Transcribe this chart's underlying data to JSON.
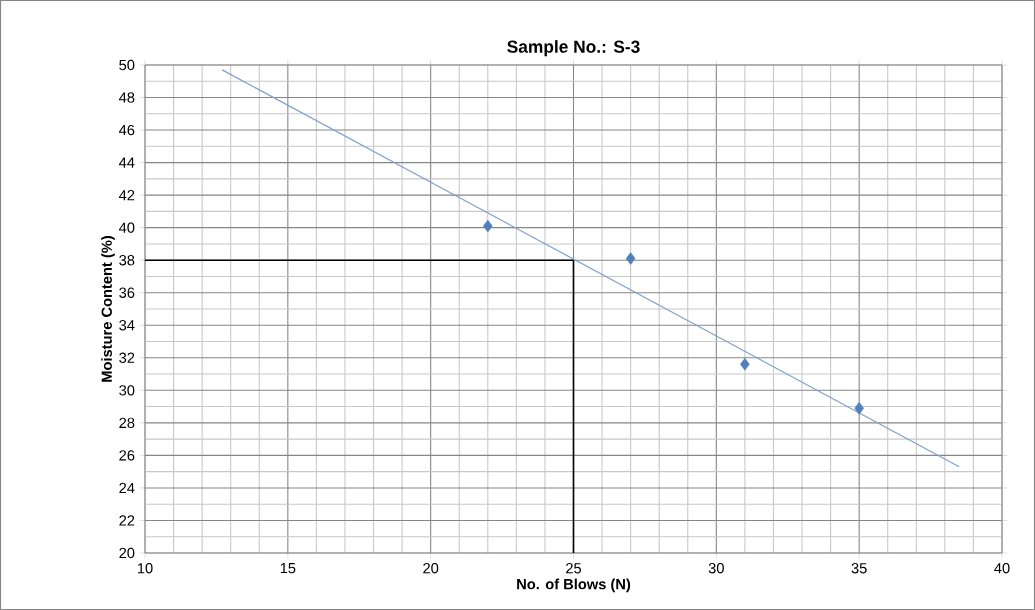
{
  "chart_data": {
    "type": "scatter",
    "title": "Sample No.: S-3",
    "xlabel": "No. of Blows (N)",
    "ylabel": "Moisture Content (%)",
    "xlim": [
      10,
      40
    ],
    "xticks": [
      10,
      15,
      20,
      25,
      30,
      35,
      40
    ],
    "ylim": [
      20,
      50
    ],
    "yticks": [
      20,
      22,
      24,
      26,
      28,
      30,
      32,
      34,
      36,
      38,
      40,
      42,
      44,
      46,
      48,
      50
    ],
    "grid": true,
    "legend": false,
    "series": [
      {
        "marker": "diamond",
        "color": "#4f81bd",
        "x": [
          22,
          27,
          31,
          35
        ],
        "values": [
          40.1,
          38.1,
          31.6,
          28.9
        ]
      },
      {
        "type": "line",
        "marker": "none",
        "line_style": "solid",
        "color": "#7ba0cd",
        "x": [
          12.7,
          38.5
        ],
        "values": [
          49.7,
          25.3
        ]
      }
    ],
    "ref_lines": [
      {
        "axis": "y",
        "value": 38,
        "color": "#000000"
      },
      {
        "axis": "x",
        "value": 25,
        "color": "#000000"
      }
    ]
  }
}
